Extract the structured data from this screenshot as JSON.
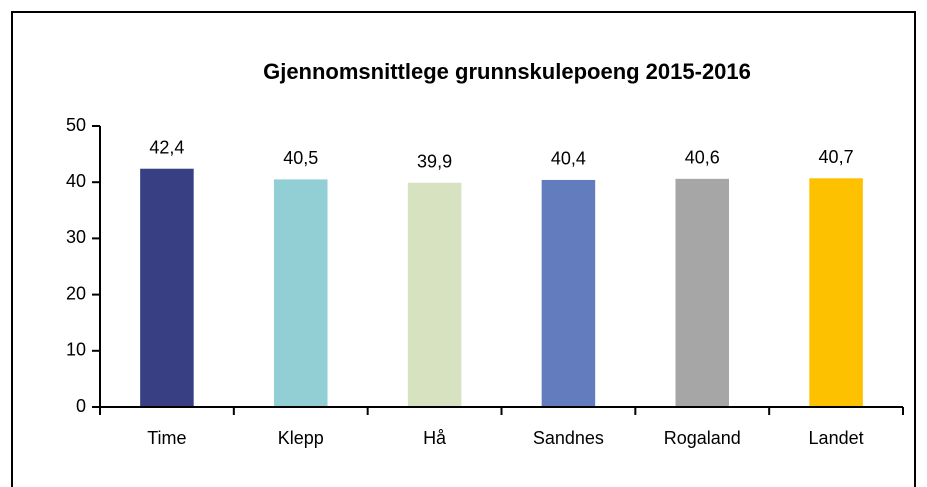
{
  "chart_data": {
    "type": "bar",
    "title": "Gjennomsnittlege grunnskulepoeng 2015-2016",
    "categories": [
      "Time",
      "Klepp",
      "Hå",
      "Sandnes",
      "Rogaland",
      "Landet"
    ],
    "values": [
      42.4,
      40.5,
      39.9,
      40.4,
      40.6,
      40.7
    ],
    "value_labels": [
      "42,4",
      "40,5",
      "39,9",
      "40,4",
      "40,6",
      "40,7"
    ],
    "colors": [
      "#383f82",
      "#92cfd4",
      "#d6e2c0",
      "#627cbe",
      "#a6a6a6",
      "#fdc100"
    ],
    "ylim": [
      0,
      50
    ],
    "yticks": [
      0,
      10,
      20,
      30,
      40,
      50
    ],
    "grid": false
  }
}
